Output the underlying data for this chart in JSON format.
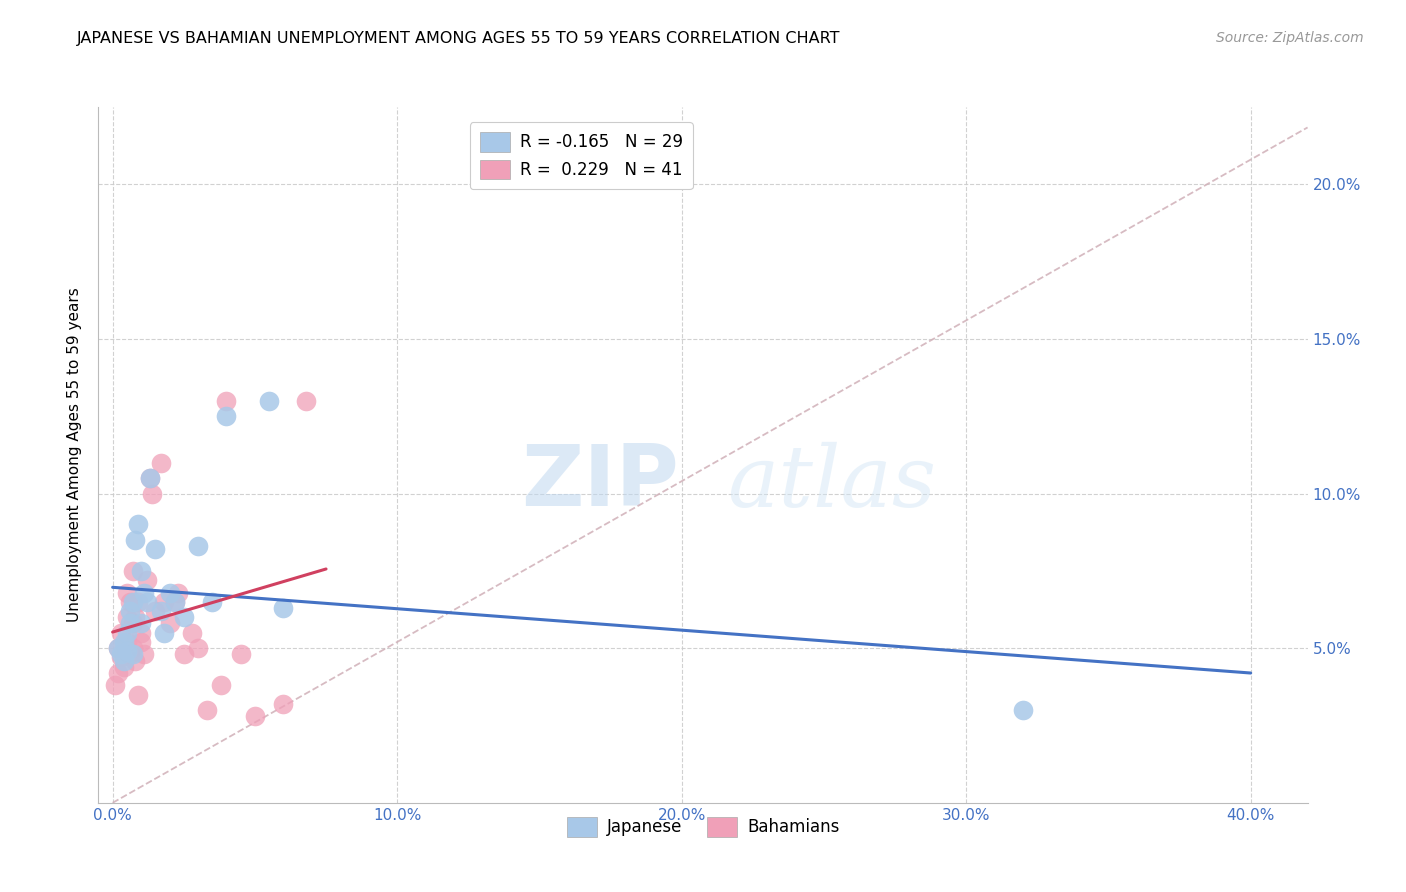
{
  "title": "JAPANESE VS BAHAMIAN UNEMPLOYMENT AMONG AGES 55 TO 59 YEARS CORRELATION CHART",
  "source": "Source: ZipAtlas.com",
  "ylabel": "Unemployment Among Ages 55 to 59 years",
  "xlabel_ticks": [
    "0.0%",
    "10.0%",
    "20.0%",
    "30.0%",
    "40.0%"
  ],
  "xlabel_tick_vals": [
    0.0,
    0.1,
    0.2,
    0.3,
    0.4
  ],
  "ylabel_ticks": [
    "5.0%",
    "10.0%",
    "15.0%",
    "20.0%"
  ],
  "ylabel_tick_vals": [
    0.05,
    0.1,
    0.15,
    0.2
  ],
  "xlim": [
    -0.005,
    0.42
  ],
  "ylim": [
    0.0,
    0.225
  ],
  "watermark_zip": "ZIP",
  "watermark_atlas": "atlas",
  "legend_japanese_r": "-0.165",
  "legend_japanese_n": "29",
  "legend_bahamians_r": "0.229",
  "legend_bahamians_n": "41",
  "japanese_color": "#a8c8e8",
  "bahamians_color": "#f0a0b8",
  "japanese_line_color": "#4472c4",
  "bahamians_line_color": "#d04060",
  "diagonal_dash_color": "#d0b0b8",
  "japanese_x": [
    0.002,
    0.003,
    0.004,
    0.004,
    0.005,
    0.005,
    0.006,
    0.006,
    0.007,
    0.007,
    0.008,
    0.009,
    0.01,
    0.01,
    0.011,
    0.012,
    0.013,
    0.015,
    0.017,
    0.018,
    0.02,
    0.022,
    0.025,
    0.03,
    0.035,
    0.04,
    0.055,
    0.06,
    0.32
  ],
  "japanese_y": [
    0.05,
    0.048,
    0.052,
    0.046,
    0.055,
    0.049,
    0.062,
    0.058,
    0.065,
    0.048,
    0.085,
    0.09,
    0.058,
    0.075,
    0.068,
    0.065,
    0.105,
    0.082,
    0.062,
    0.055,
    0.068,
    0.065,
    0.06,
    0.083,
    0.065,
    0.125,
    0.13,
    0.063,
    0.03
  ],
  "bahamians_x": [
    0.001,
    0.002,
    0.002,
    0.003,
    0.003,
    0.004,
    0.004,
    0.005,
    0.005,
    0.005,
    0.006,
    0.006,
    0.007,
    0.007,
    0.007,
    0.008,
    0.008,
    0.009,
    0.009,
    0.01,
    0.01,
    0.011,
    0.012,
    0.013,
    0.014,
    0.015,
    0.017,
    0.018,
    0.02,
    0.022,
    0.023,
    0.025,
    0.028,
    0.03,
    0.033,
    0.038,
    0.04,
    0.045,
    0.05,
    0.06,
    0.068
  ],
  "bahamians_y": [
    0.038,
    0.042,
    0.05,
    0.047,
    0.055,
    0.048,
    0.044,
    0.052,
    0.06,
    0.068,
    0.048,
    0.065,
    0.05,
    0.058,
    0.075,
    0.046,
    0.06,
    0.065,
    0.035,
    0.055,
    0.052,
    0.048,
    0.072,
    0.105,
    0.1,
    0.062,
    0.11,
    0.065,
    0.058,
    0.065,
    0.068,
    0.048,
    0.055,
    0.05,
    0.03,
    0.038,
    0.13,
    0.048,
    0.028,
    0.032,
    0.13
  ],
  "title_fontsize": 11.5,
  "axis_label_fontsize": 11,
  "tick_fontsize": 11,
  "legend_fontsize": 12,
  "source_fontsize": 10,
  "background_color": "#ffffff",
  "grid_color": "#cccccc"
}
